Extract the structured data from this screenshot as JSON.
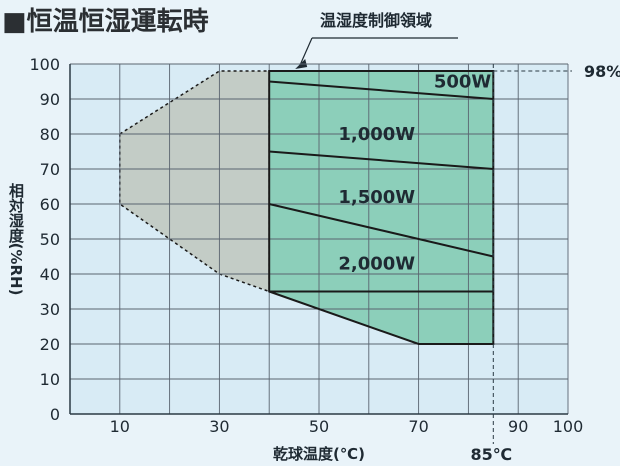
{
  "title": "■恒温恒湿運転時",
  "control_area_label": "温湿度制御領域",
  "chart_data": {
    "type": "area",
    "xlabel": "乾球温度(℃)",
    "ylabel": "相対湿度(%RH)",
    "xlim": [
      0,
      100
    ],
    "ylim": [
      0,
      100
    ],
    "x_ticks": [
      10,
      30,
      50,
      70,
      90,
      100
    ],
    "y_ticks": [
      0,
      10,
      20,
      30,
      40,
      50,
      60,
      70,
      80,
      90,
      100
    ],
    "grid": true,
    "outer_region": [
      [
        10,
        80
      ],
      [
        30,
        98
      ],
      [
        40,
        98
      ],
      [
        40,
        35
      ],
      [
        30,
        40
      ],
      [
        10,
        60
      ]
    ],
    "control_region": [
      [
        40,
        98
      ],
      [
        85,
        98
      ],
      [
        85,
        20
      ],
      [
        70,
        20
      ],
      [
        40,
        35
      ]
    ],
    "capacity_lines": [
      {
        "label": "500W",
        "points": [
          [
            40,
            95
          ],
          [
            85,
            90
          ]
        ],
        "label_at": [
          85,
          95
        ]
      },
      {
        "label": "1,000W",
        "points": [
          [
            40,
            75
          ],
          [
            85,
            70
          ]
        ],
        "label_at": [
          62,
          80
        ]
      },
      {
        "label": "1,500W",
        "points": [
          [
            40,
            60
          ],
          [
            85,
            45
          ]
        ],
        "label_at": [
          62,
          62
        ]
      },
      {
        "label": "2,000W",
        "points": [
          [
            40,
            35
          ],
          [
            85,
            35
          ]
        ],
        "label_at": [
          62,
          43
        ]
      }
    ],
    "annotations": {
      "max_humidity": {
        "value": 98,
        "label": "98%"
      },
      "max_temperature": {
        "value": 85,
        "label": "85℃"
      }
    }
  },
  "colors": {
    "text": "#1f2a33",
    "axis": "#2a3a44",
    "grid": "#5a6470",
    "outer_fill": "#c3ccc6",
    "control_fill": "#8ccfba",
    "plot_bg": "#d8ebf5",
    "line": "#1a1a1a"
  }
}
